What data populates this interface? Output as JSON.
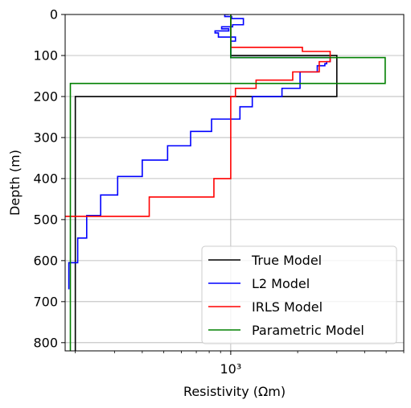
{
  "chart_data": {
    "type": "line",
    "xlabel": "Resistivity (Ωm)",
    "ylabel": "Depth (m)",
    "x_scale": "log",
    "xlim": [
      180,
      6000
    ],
    "ylim": [
      820,
      0
    ],
    "x_ticks": [
      {
        "value": 1000,
        "label": "10³"
      }
    ],
    "y_ticks": [
      0,
      100,
      200,
      300,
      400,
      500,
      600,
      700,
      800
    ],
    "grid": true,
    "legend_position": "lower-right",
    "series": [
      {
        "name": "True Model",
        "color": "#000000",
        "points": [
          [
            1000,
            0
          ],
          [
            1000,
            100
          ],
          [
            3000,
            100
          ],
          [
            3000,
            200
          ],
          [
            200,
            200
          ],
          [
            200,
            820
          ]
        ]
      },
      {
        "name": "L2 Model",
        "color": "#0000ff",
        "points": [
          [
            980,
            0
          ],
          [
            940,
            0
          ],
          [
            940,
            5
          ],
          [
            1010,
            5
          ],
          [
            1010,
            10
          ],
          [
            1140,
            10
          ],
          [
            1140,
            25
          ],
          [
            1020,
            25
          ],
          [
            1020,
            30
          ],
          [
            910,
            30
          ],
          [
            910,
            35
          ],
          [
            980,
            35
          ],
          [
            980,
            40
          ],
          [
            850,
            40
          ],
          [
            850,
            45
          ],
          [
            880,
            45
          ],
          [
            880,
            55
          ],
          [
            1050,
            55
          ],
          [
            1050,
            65
          ],
          [
            1000,
            65
          ],
          [
            1000,
            105
          ],
          [
            2800,
            105
          ],
          [
            2800,
            115
          ],
          [
            2700,
            115
          ],
          [
            2700,
            120
          ],
          [
            2650,
            120
          ],
          [
            2650,
            125
          ],
          [
            2450,
            125
          ],
          [
            2450,
            140
          ],
          [
            2050,
            140
          ],
          [
            2050,
            180
          ],
          [
            1700,
            180
          ],
          [
            1700,
            200
          ],
          [
            1250,
            200
          ],
          [
            1250,
            225
          ],
          [
            1100,
            225
          ],
          [
            1100,
            255
          ],
          [
            820,
            255
          ],
          [
            820,
            285
          ],
          [
            660,
            285
          ],
          [
            660,
            320
          ],
          [
            520,
            320
          ],
          [
            520,
            355
          ],
          [
            400,
            355
          ],
          [
            400,
            395
          ],
          [
            310,
            395
          ],
          [
            310,
            440
          ],
          [
            260,
            440
          ],
          [
            260,
            490
          ],
          [
            225,
            490
          ],
          [
            225,
            545
          ],
          [
            205,
            545
          ],
          [
            205,
            605
          ],
          [
            187,
            605
          ],
          [
            187,
            670
          ]
        ]
      },
      {
        "name": "IRLS Model",
        "color": "#ff0000",
        "points": [
          [
            1000,
            0
          ],
          [
            1000,
            80
          ],
          [
            2100,
            80
          ],
          [
            2100,
            90
          ],
          [
            2800,
            90
          ],
          [
            2800,
            115
          ],
          [
            2500,
            115
          ],
          [
            2500,
            140
          ],
          [
            1900,
            140
          ],
          [
            1900,
            160
          ],
          [
            1300,
            160
          ],
          [
            1300,
            180
          ],
          [
            1050,
            180
          ],
          [
            1050,
            200
          ],
          [
            1000,
            200
          ],
          [
            1000,
            400
          ],
          [
            840,
            400
          ],
          [
            840,
            445
          ],
          [
            430,
            445
          ],
          [
            430,
            492
          ],
          [
            180,
            492
          ]
        ]
      },
      {
        "name": "Parametric Model",
        "color": "#008000",
        "points": [
          [
            1000,
            0
          ],
          [
            1000,
            105
          ],
          [
            4950,
            105
          ],
          [
            4950,
            168
          ],
          [
            190,
            168
          ],
          [
            190,
            820
          ]
        ]
      }
    ]
  }
}
